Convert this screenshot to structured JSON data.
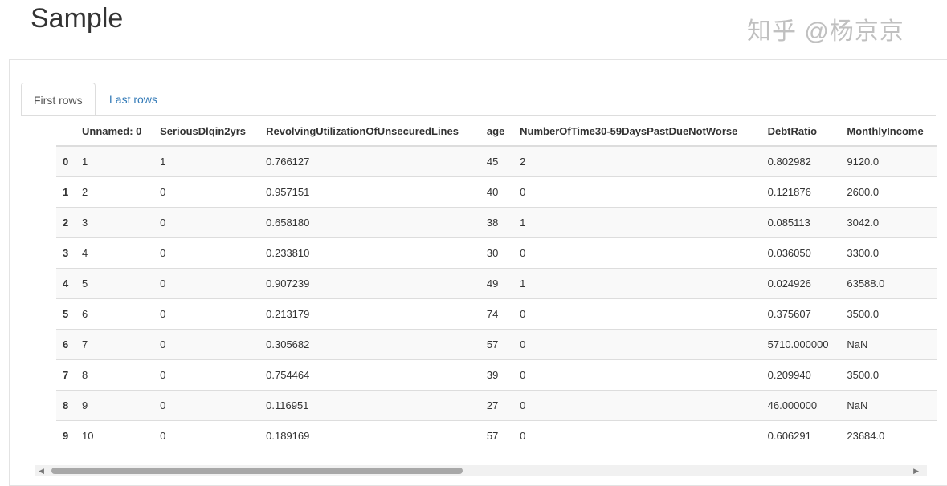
{
  "title": "Sample",
  "tabs": [
    {
      "label": "First rows",
      "active": true
    },
    {
      "label": "Last rows",
      "active": false
    }
  ],
  "columns": [
    "",
    "Unnamed: 0",
    "SeriousDlqin2yrs",
    "RevolvingUtilizationOfUnsecuredLines",
    "age",
    "NumberOfTime30-59DaysPastDueNotWorse",
    "DebtRatio",
    "MonthlyIncome"
  ],
  "rows": [
    [
      "0",
      "1",
      "1",
      "0.766127",
      "45",
      "2",
      "0.802982",
      "9120.0"
    ],
    [
      "1",
      "2",
      "0",
      "0.957151",
      "40",
      "0",
      "0.121876",
      "2600.0"
    ],
    [
      "2",
      "3",
      "0",
      "0.658180",
      "38",
      "1",
      "0.085113",
      "3042.0"
    ],
    [
      "3",
      "4",
      "0",
      "0.233810",
      "30",
      "0",
      "0.036050",
      "3300.0"
    ],
    [
      "4",
      "5",
      "0",
      "0.907239",
      "49",
      "1",
      "0.024926",
      "63588.0"
    ],
    [
      "5",
      "6",
      "0",
      "0.213179",
      "74",
      "0",
      "0.375607",
      "3500.0"
    ],
    [
      "6",
      "7",
      "0",
      "0.305682",
      "57",
      "0",
      "5710.000000",
      "NaN"
    ],
    [
      "7",
      "8",
      "0",
      "0.754464",
      "39",
      "0",
      "0.209940",
      "3500.0"
    ],
    [
      "8",
      "9",
      "0",
      "0.116951",
      "27",
      "0",
      "46.000000",
      "NaN"
    ],
    [
      "9",
      "10",
      "0",
      "0.189169",
      "57",
      "0",
      "0.606291",
      "23684.0"
    ]
  ],
  "watermark": "知乎 @杨京京",
  "scrollbar": {
    "position_fraction": 0.0,
    "visible_fraction": 0.46
  }
}
